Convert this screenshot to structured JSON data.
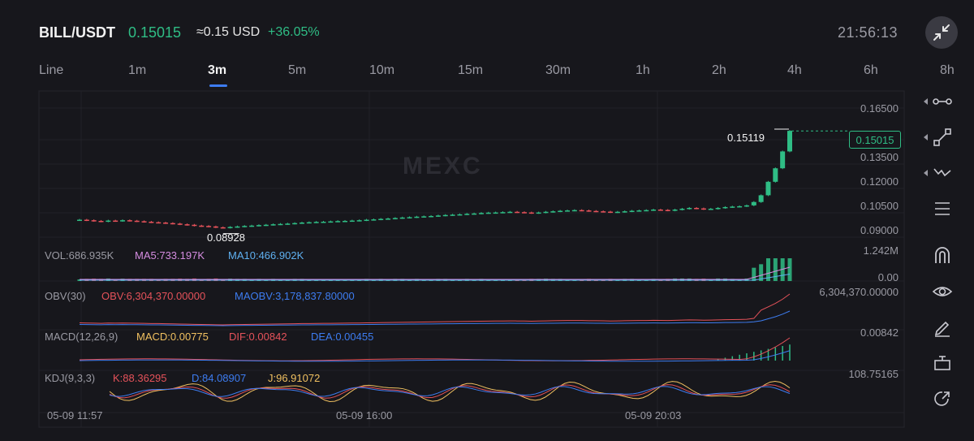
{
  "header": {
    "pair": "BILL/USDT",
    "price": "0.15015",
    "usd_price": "≈0.15 USD",
    "change": "+36.05%",
    "clock": "21:56:13",
    "colors": {
      "up": "#2fbd85",
      "down": "#e5525a"
    }
  },
  "tabs": {
    "items": [
      {
        "label": "Line"
      },
      {
        "label": "1m"
      },
      {
        "label": "3m"
      },
      {
        "label": "5m"
      },
      {
        "label": "10m"
      },
      {
        "label": "15m"
      },
      {
        "label": "30m"
      },
      {
        "label": "1h"
      },
      {
        "label": "2h"
      },
      {
        "label": "4h"
      },
      {
        "label": "6h"
      },
      {
        "label": "8h"
      }
    ],
    "active": "3m"
  },
  "watermark": "MEXC",
  "price_axis": [
    "0.16500",
    "0.15015",
    "0.13500",
    "0.12000",
    "0.10500",
    "0.09000"
  ],
  "markers": {
    "high": "0.15119",
    "low": "0.08928",
    "last": "0.15015"
  },
  "volume": {
    "label": "VOL:686.935K",
    "ma5": "MA5:733.197K",
    "ma10": "MA10:466.902K",
    "axis_top": "1.242M",
    "axis_bottom": "0.00"
  },
  "obv": {
    "label": "OBV(30)",
    "obv": "OBV:6,304,370.00000",
    "maobv": "MAOBV:3,178,837.80000",
    "axis_top": "6,304,370.00000"
  },
  "macd": {
    "label": "MACD(12,26,9)",
    "macd": "MACD:0.00775",
    "dif": "DIF:0.00842",
    "dea": "DEA:0.00455",
    "axis_top": "0.00842"
  },
  "kdj": {
    "label": "KDJ(9,3,3)",
    "k": "K:88.36295",
    "d": "D:84.08907",
    "j": "J:96.91072",
    "axis_top": "108.75165"
  },
  "time_axis": [
    "05-09 11:57",
    "05-09 16:00",
    "05-09 20:03"
  ],
  "tools": [
    "horizontal-line-icon",
    "trend-line-icon",
    "fib-icon",
    "list-icon",
    "magnet-icon",
    "eye-icon",
    "pen-icon",
    "ruler-icon",
    "share-icon"
  ],
  "chart_data": {
    "type": "candlestick",
    "closes": [
      0.0975,
      0.0972,
      0.0968,
      0.0965,
      0.097,
      0.0968,
      0.0972,
      0.0969,
      0.0966,
      0.0963,
      0.096,
      0.0958,
      0.0955,
      0.0952,
      0.0948,
      0.0945,
      0.094,
      0.0938,
      0.0935,
      0.093,
      0.0928,
      0.0932,
      0.0935,
      0.0938,
      0.094,
      0.0943,
      0.0945,
      0.0948,
      0.095,
      0.0952,
      0.0955,
      0.0958,
      0.096,
      0.0962,
      0.0963,
      0.0965,
      0.0967,
      0.0968,
      0.097,
      0.0972,
      0.0975,
      0.0977,
      0.098,
      0.0982,
      0.0985,
      0.0988,
      0.099,
      0.0993,
      0.0995,
      0.0997,
      0.1,
      0.1003,
      0.1005,
      0.1007,
      0.101,
      0.1012,
      0.1015,
      0.1017,
      0.1018,
      0.102,
      0.1022,
      0.102,
      0.1018,
      0.1015,
      0.1018,
      0.1022,
      0.1025,
      0.1028,
      0.103,
      0.1032,
      0.103,
      0.1027,
      0.1025,
      0.1023,
      0.102,
      0.1022,
      0.1025,
      0.1028,
      0.103,
      0.1032,
      0.1035,
      0.1033,
      0.103,
      0.1035,
      0.104,
      0.1045,
      0.1042,
      0.1038,
      0.104,
      0.1045,
      0.105,
      0.1053,
      0.1055,
      0.106,
      0.108,
      0.112,
      0.12,
      0.128,
      0.138,
      0.1502
    ],
    "high": 0.15119,
    "low": 0.08928,
    "last": 0.15015,
    "ylim": [
      0.0862,
      0.17
    ]
  }
}
